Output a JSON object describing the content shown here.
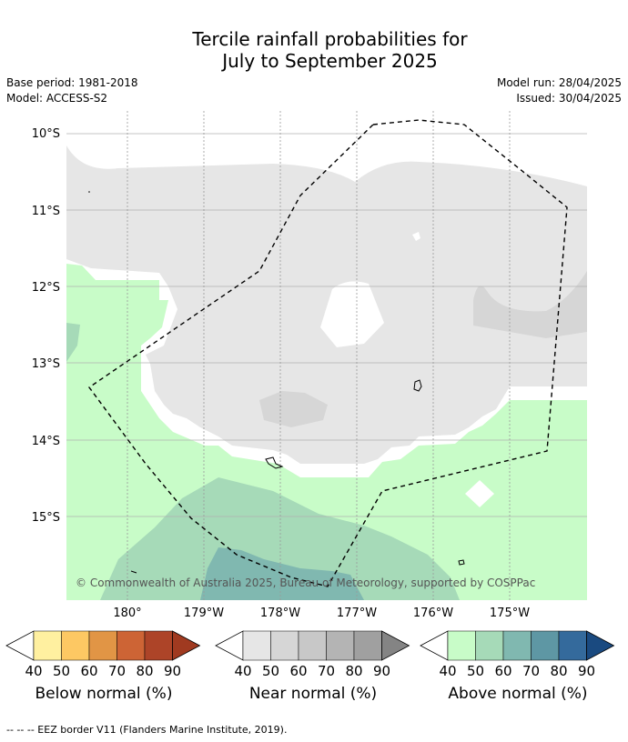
{
  "title_line1": "Tercile rainfall probabilities for",
  "title_line2": "July to September 2025",
  "meta": {
    "base_period": "Base period: 1981-2018",
    "model": "Model: ACCESS-S2",
    "model_run": "Model run: 28/04/2025",
    "issued": "Issued: 30/04/2025"
  },
  "axes": {
    "lat_labels": [
      "10°S",
      "11°S",
      "12°S",
      "13°S",
      "14°S",
      "15°S"
    ],
    "lon_labels": [
      "180°",
      "179°W",
      "178°W",
      "177°W",
      "176°W",
      "175°W"
    ]
  },
  "copyright": "© Commonwealth of Australia 2025, Bureau of Meteorology, supported by COSPPac",
  "colorbars": [
    {
      "title": "Below normal (%)",
      "ticks": [
        "40",
        "50",
        "60",
        "70",
        "80",
        "90"
      ],
      "colors": [
        "#fff0a0",
        "#fdc863",
        "#e19545",
        "#cd6435",
        "#ad4428",
        "#a03a20"
      ]
    },
    {
      "title": "Near normal (%)",
      "ticks": [
        "40",
        "50",
        "60",
        "70",
        "80",
        "90"
      ],
      "colors": [
        "#e6e6e6",
        "#d6d6d6",
        "#c8c8c8",
        "#b4b4b4",
        "#a0a0a0",
        "#848484"
      ]
    },
    {
      "title": "Above normal (%)",
      "ticks": [
        "40",
        "50",
        "60",
        "70",
        "80",
        "90"
      ],
      "colors": [
        "#c8fcc8",
        "#a6dab8",
        "#80b8b0",
        "#5e97a4",
        "#346a9c",
        "#1a4a80"
      ]
    }
  ],
  "footer": "--  --  -- EEZ border V11 (Flanders Marine Institute, 2019)."
}
